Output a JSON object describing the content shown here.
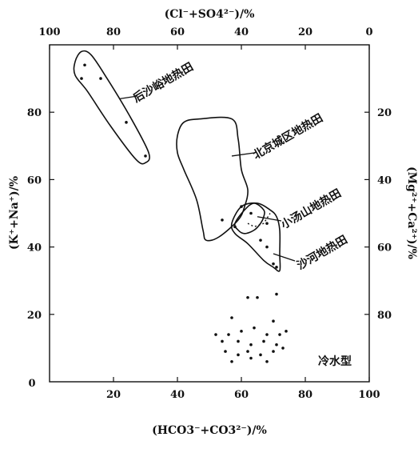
{
  "chart_data": {
    "type": "scatter",
    "axes": {
      "bottom": {
        "label": "(HCO3⁻+CO3²⁻)/%",
        "range": [
          0,
          100
        ],
        "ticks": [
          "20",
          "40",
          "60",
          "80",
          "100"
        ],
        "zero_label": "0"
      },
      "left": {
        "label": "(K⁺+Na⁺)/%",
        "range": [
          0,
          100
        ],
        "ticks": [
          "20",
          "40",
          "60",
          "80"
        ]
      },
      "top": {
        "label": "(Cl⁻+SO4²⁻)/%",
        "range": [
          100,
          0
        ],
        "ticks": [
          "100",
          "80",
          "60",
          "40",
          "20",
          "0"
        ]
      },
      "right": {
        "label": "(Mg²⁺+Ca²⁺)/%",
        "range": [
          0,
          100
        ],
        "ticks": [
          "20",
          "40",
          "60",
          "80"
        ]
      }
    },
    "grid": false,
    "groups": [
      {
        "name": "后沙峪地热田",
        "outline": [
          [
            8,
            95
          ],
          [
            10,
            98
          ],
          [
            13,
            97
          ],
          [
            18,
            90
          ],
          [
            25,
            79
          ],
          [
            31,
            68
          ],
          [
            30,
            65
          ],
          [
            27,
            66
          ],
          [
            19,
            76
          ],
          [
            12,
            86
          ],
          [
            8,
            91
          ]
        ],
        "points": [
          [
            11,
            94
          ],
          [
            10,
            90
          ],
          [
            16,
            90
          ],
          [
            24,
            77
          ],
          [
            30,
            67
          ]
        ],
        "label_anchor": [
          22,
          84
        ]
      },
      {
        "name": "北京城区地热田",
        "outline": [
          [
            40,
            73
          ],
          [
            42,
            77
          ],
          [
            47,
            78
          ],
          [
            57,
            78
          ],
          [
            59,
            72
          ],
          [
            60,
            63
          ],
          [
            62,
            57
          ],
          [
            61,
            52
          ],
          [
            59,
            48
          ],
          [
            53,
            43
          ],
          [
            49,
            42
          ],
          [
            48,
            45
          ],
          [
            46,
            54
          ],
          [
            42,
            63
          ],
          [
            40,
            68
          ]
        ],
        "points": [
          [
            54,
            48
          ],
          [
            60,
            52
          ]
        ],
        "label_anchor": [
          57,
          67
        ]
      },
      {
        "name": "小汤山地热田",
        "outline": [
          [
            58,
            47
          ],
          [
            61,
            51
          ],
          [
            64,
            53
          ],
          [
            67,
            51
          ],
          [
            67,
            49
          ],
          [
            66,
            47
          ],
          [
            64,
            45
          ],
          [
            61,
            44
          ],
          [
            59,
            45
          ]
        ],
        "dashed_boundary": [
          [
            62,
            47
          ],
          [
            64,
            46
          ],
          [
            67,
            47
          ],
          [
            69,
            50
          ]
        ],
        "points": [
          [
            63,
            50
          ],
          [
            68,
            47
          ]
        ],
        "label_anchor": [
          65,
          49
        ]
      },
      {
        "name": "沙河地热田",
        "outline": [
          [
            57,
            47
          ],
          [
            58,
            44
          ],
          [
            62,
            41
          ],
          [
            67,
            36
          ],
          [
            70,
            34
          ],
          [
            72,
            33
          ],
          [
            72,
            38
          ],
          [
            72,
            45
          ],
          [
            71,
            49
          ],
          [
            69,
            51
          ],
          [
            65,
            53
          ],
          [
            60,
            52
          ]
        ],
        "points": [
          [
            58,
            46
          ],
          [
            66,
            42
          ],
          [
            68,
            40
          ],
          [
            70,
            35
          ],
          [
            71,
            34
          ]
        ],
        "label_anchor": [
          70,
          38
        ]
      },
      {
        "name": "冷水型",
        "outline": [],
        "points": [
          [
            62,
            25
          ],
          [
            65,
            25
          ],
          [
            71,
            26
          ],
          [
            57,
            19
          ],
          [
            70,
            18
          ],
          [
            52,
            14
          ],
          [
            56,
            14
          ],
          [
            60,
            15
          ],
          [
            64,
            16
          ],
          [
            68,
            14
          ],
          [
            72,
            14
          ],
          [
            74,
            15
          ],
          [
            54,
            12
          ],
          [
            59,
            12
          ],
          [
            63,
            11
          ],
          [
            67,
            12
          ],
          [
            71,
            11
          ],
          [
            55,
            9
          ],
          [
            59,
            8
          ],
          [
            62,
            9
          ],
          [
            66,
            8
          ],
          [
            70,
            9
          ],
          [
            73,
            10
          ],
          [
            57,
            6
          ],
          [
            63,
            7
          ],
          [
            68,
            6
          ]
        ]
      }
    ]
  }
}
